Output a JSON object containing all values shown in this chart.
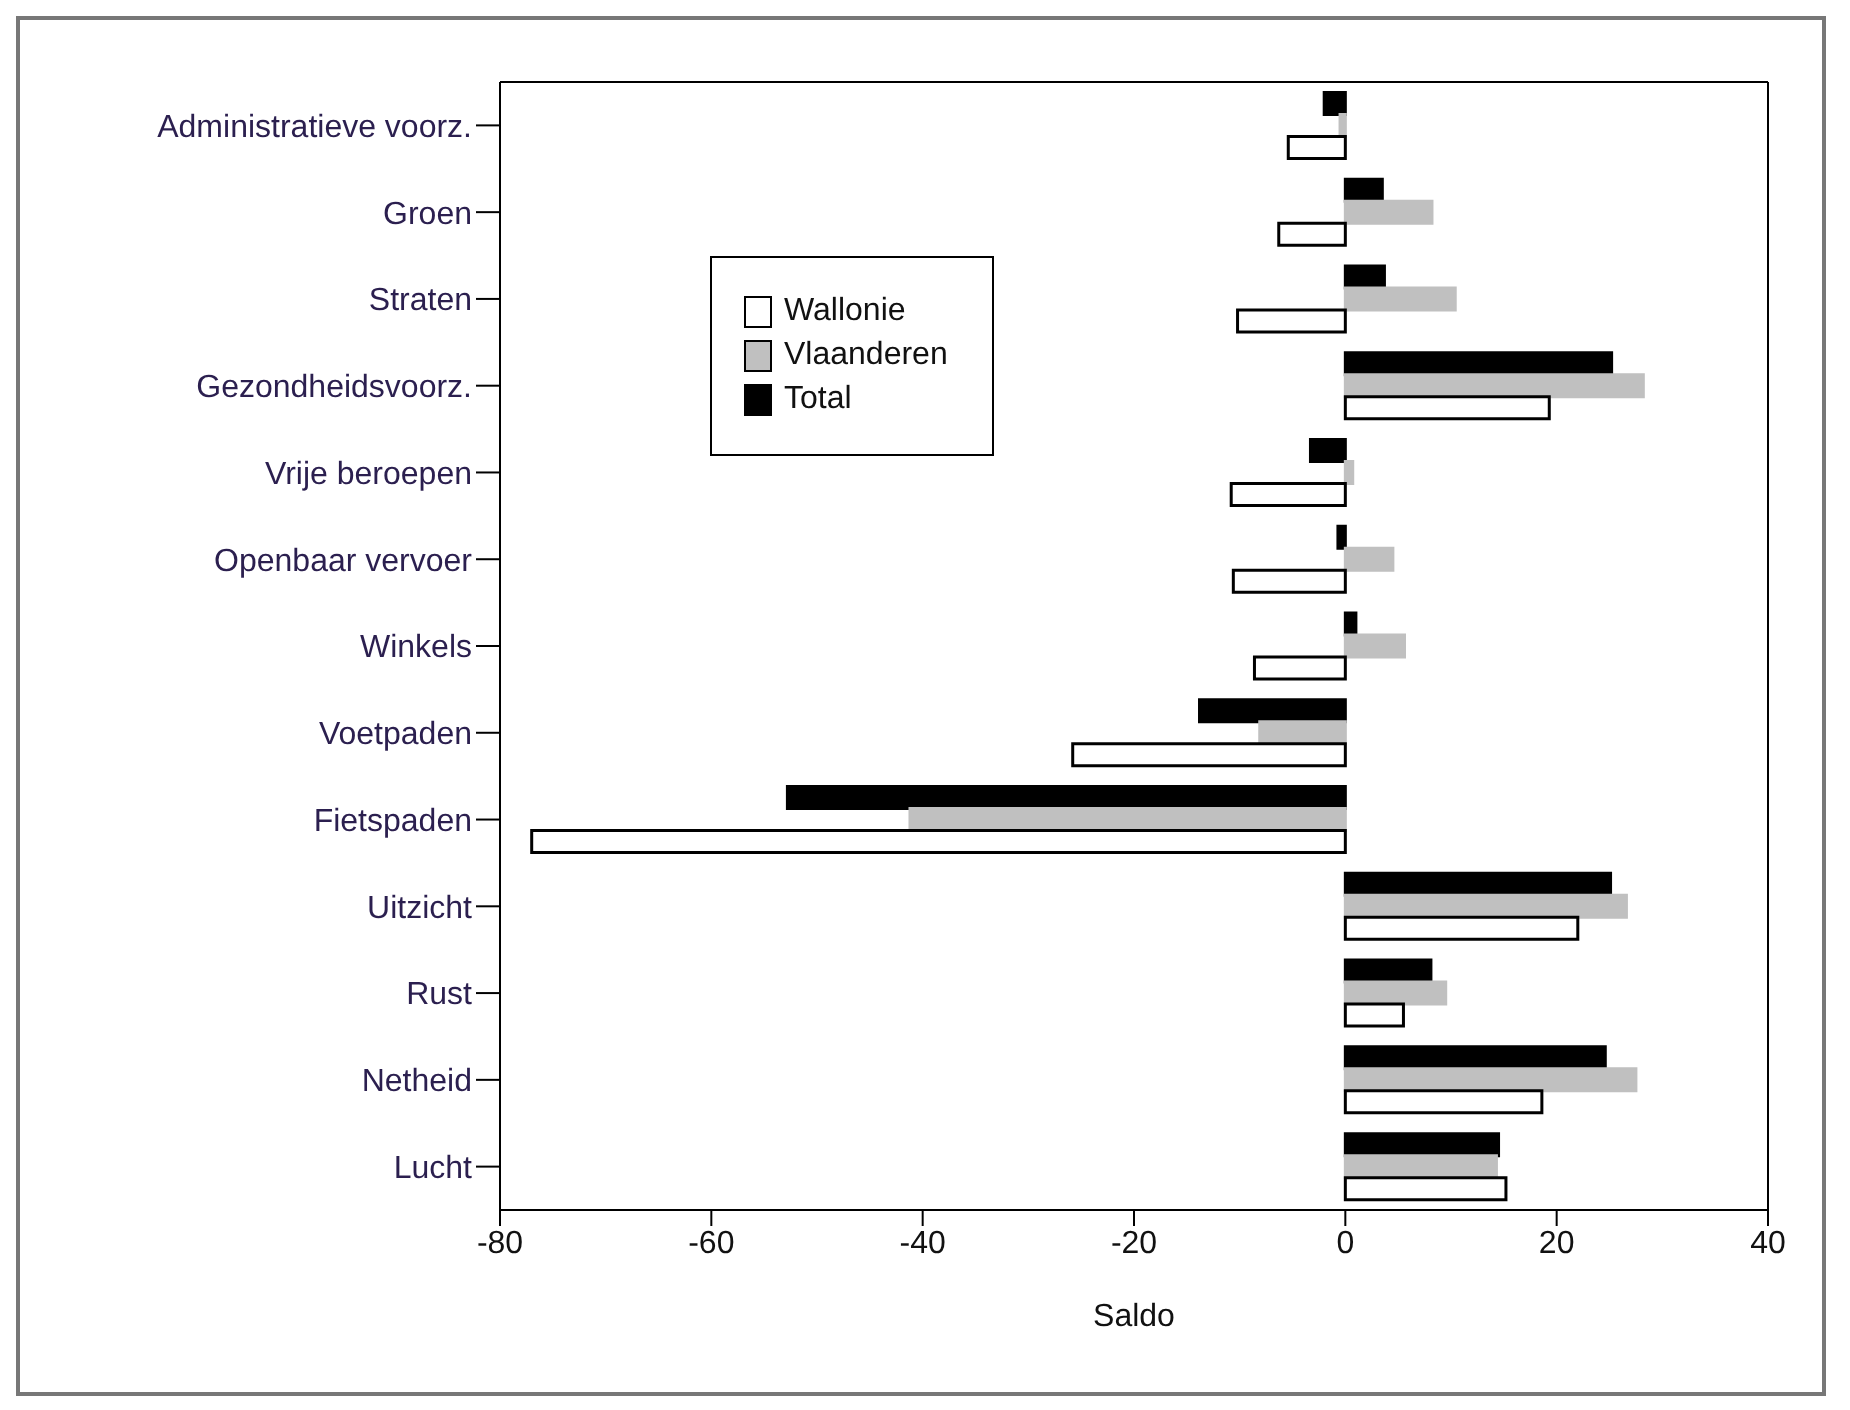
{
  "chart_data": {
    "type": "bar",
    "orientation": "horizontal",
    "xlabel": "Saldo",
    "categories": [
      "Administratieve voorz.",
      "Groen",
      "Straten",
      "Gezondheidsvoorz.",
      "Vrije beroepen",
      "Openbaar vervoer",
      "Winkels",
      "Voetpaden",
      "Fietspaden",
      "Uitzicht",
      "Rust",
      "Netheid",
      "Lucht"
    ],
    "series": [
      {
        "name": "Wallonie",
        "color": "#ffffff",
        "values": [
          -5.4,
          -6.3,
          -10.2,
          19.3,
          -10.8,
          -10.6,
          -8.6,
          -25.8,
          -77,
          22.0,
          5.5,
          18.6,
          15.2
        ]
      },
      {
        "name": "Vlaanderen",
        "color": "#c0c0c0",
        "values": [
          -0.5,
          8.2,
          10.4,
          28.2,
          0.7,
          4.5,
          5.6,
          -8.1,
          -41.2,
          26.6,
          9.5,
          27.5,
          14.3
        ]
      },
      {
        "name": "Total",
        "color": "#000000",
        "values": [
          -2.0,
          3.5,
          3.7,
          25.2,
          -3.3,
          -0.7,
          1.0,
          -13.8,
          -52.8,
          25.1,
          8.1,
          24.6,
          14.5
        ]
      }
    ],
    "xlim": [
      -80,
      40
    ],
    "xticks": [
      -80,
      -60,
      -40,
      -20,
      0,
      20,
      40
    ],
    "legend": "top left"
  }
}
